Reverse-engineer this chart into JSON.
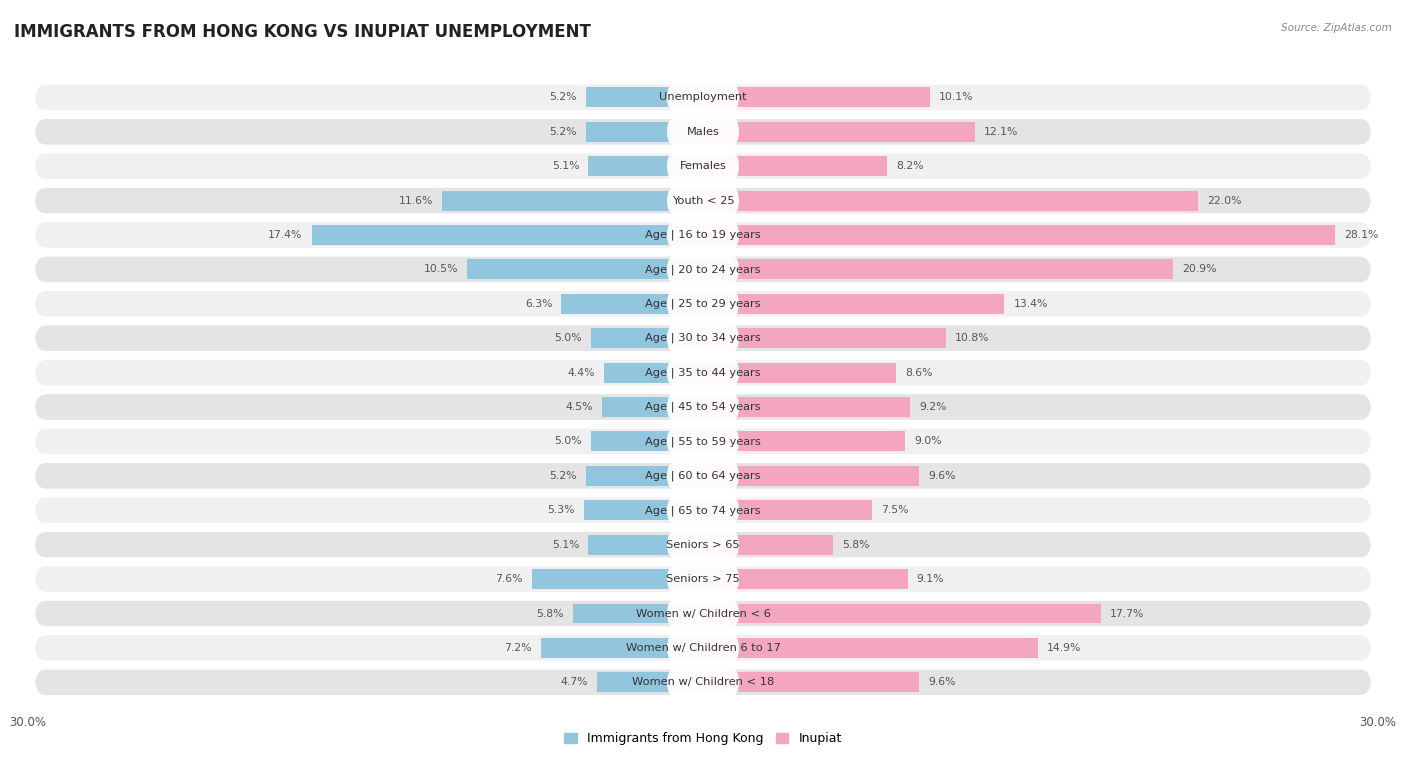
{
  "title": "IMMIGRANTS FROM HONG KONG VS INUPIAT UNEMPLOYMENT",
  "source": "Source: ZipAtlas.com",
  "categories": [
    "Unemployment",
    "Males",
    "Females",
    "Youth < 25",
    "Age | 16 to 19 years",
    "Age | 20 to 24 years",
    "Age | 25 to 29 years",
    "Age | 30 to 34 years",
    "Age | 35 to 44 years",
    "Age | 45 to 54 years",
    "Age | 55 to 59 years",
    "Age | 60 to 64 years",
    "Age | 65 to 74 years",
    "Seniors > 65",
    "Seniors > 75",
    "Women w/ Children < 6",
    "Women w/ Children 6 to 17",
    "Women w/ Children < 18"
  ],
  "hk_values": [
    5.2,
    5.2,
    5.1,
    11.6,
    17.4,
    10.5,
    6.3,
    5.0,
    4.4,
    4.5,
    5.0,
    5.2,
    5.3,
    5.1,
    7.6,
    5.8,
    7.2,
    4.7
  ],
  "inupiat_values": [
    10.1,
    12.1,
    8.2,
    22.0,
    28.1,
    20.9,
    13.4,
    10.8,
    8.6,
    9.2,
    9.0,
    9.6,
    7.5,
    5.8,
    9.1,
    17.7,
    14.9,
    9.6
  ],
  "hk_color": "#92C5DE",
  "inupiat_color": "#F4A6C0",
  "row_color_light": "#F0F0F0",
  "row_color_dark": "#E4E4E4",
  "label_bg_color": "#FFFFFF",
  "axis_max": 30.0,
  "legend_hk": "Immigrants from Hong Kong",
  "legend_inupiat": "Inupiat",
  "title_fontsize": 12,
  "label_fontsize": 8.2,
  "value_fontsize": 7.8,
  "axis_label_fontsize": 8.5
}
